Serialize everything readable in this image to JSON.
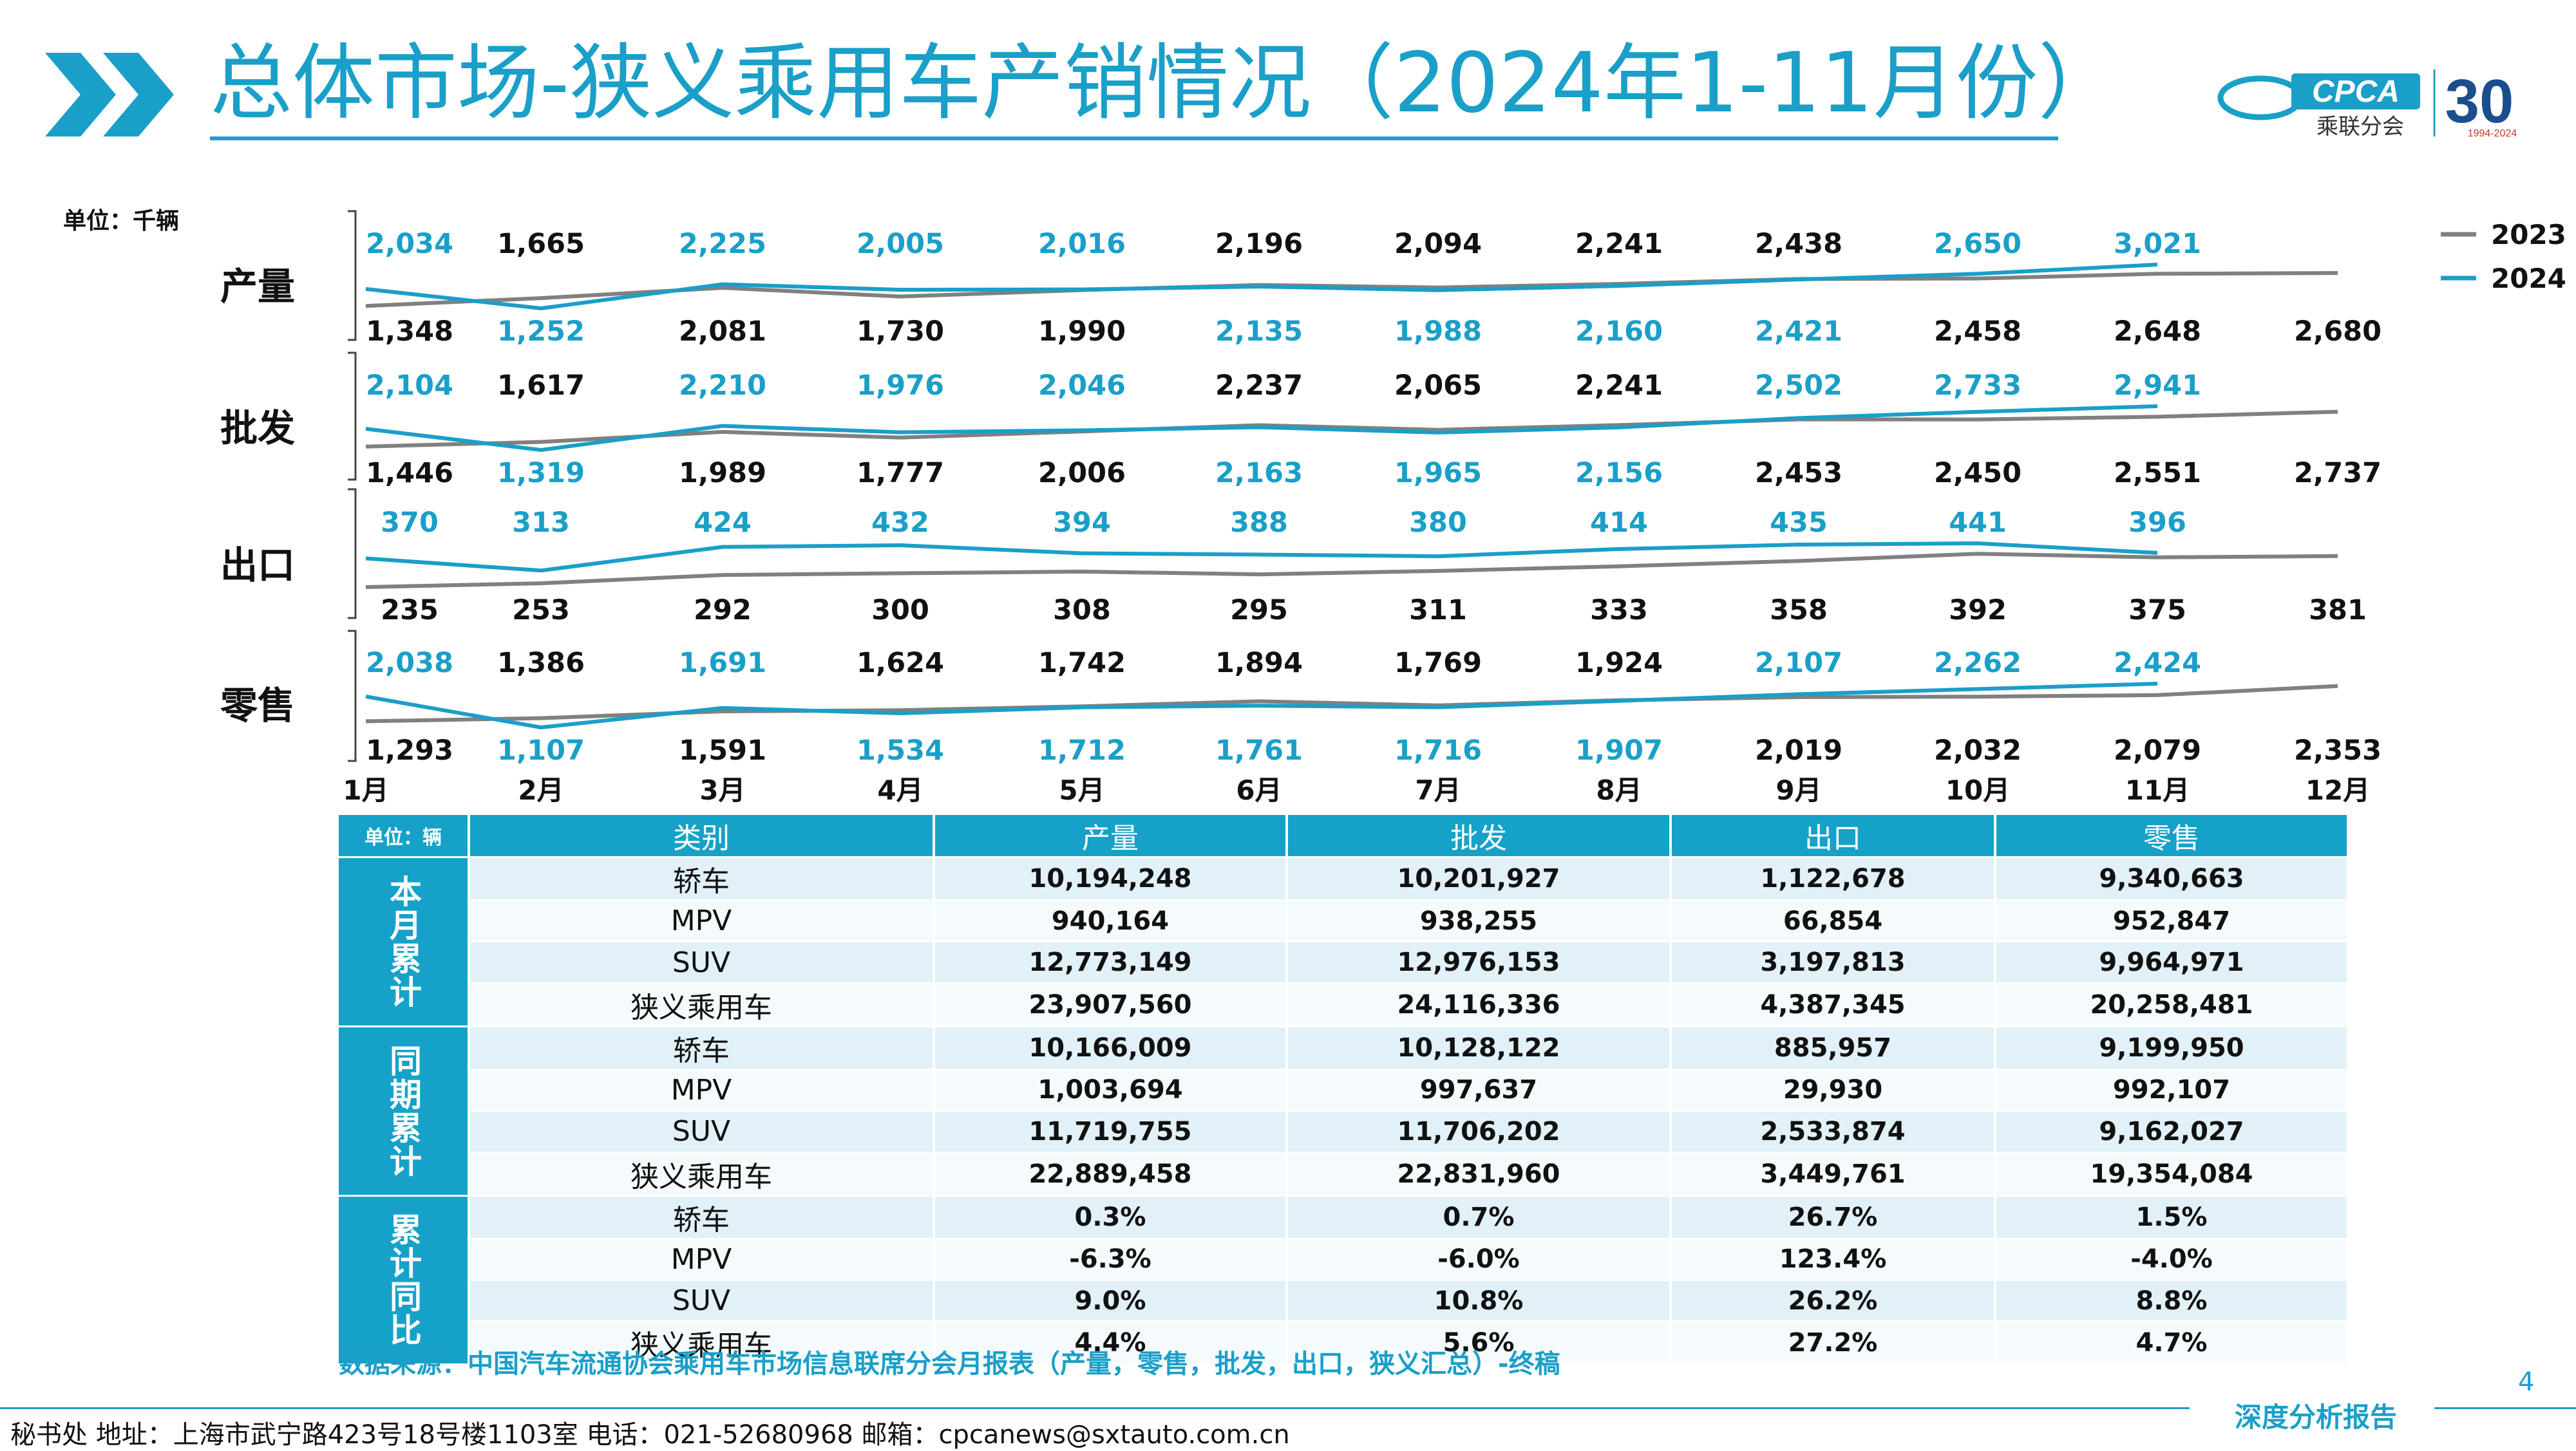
{
  "header": {
    "title": "总体市场-狭义乘用车产销情况（2024年1-11月份）",
    "logo_text": "CPCA",
    "logo_subtext": "乘联分会",
    "anniversary_text": "30",
    "anniversary_years": "1994-2024"
  },
  "colors": {
    "accent": "#1a9fc8",
    "series_2023": "#808080",
    "series_2024": "#1a9fc8"
  },
  "chart": {
    "unit": "单位：千辆",
    "legend": [
      "2023",
      "2024"
    ]
  },
  "chart_data": {
    "type": "line",
    "categories": [
      "1月",
      "2月",
      "3月",
      "4月",
      "5月",
      "6月",
      "7月",
      "8月",
      "9月",
      "10月",
      "11月",
      "12月"
    ],
    "panels": [
      {
        "label": "产量",
        "series": [
          {
            "name": "2023",
            "values": [
              1348,
              1665,
              2081,
              1730,
              1990,
              2196,
              2094,
              2241,
              2438,
              2458,
              2648,
              2680
            ],
            "labels": [
              "1,348",
              "1,665",
              "2,081",
              "1,730",
              "1,990",
              "2,196",
              "2,094",
              "2,241",
              "2,438",
              "2,458",
              "2,648",
              "2,680"
            ]
          },
          {
            "name": "2024",
            "values": [
              2034,
              1252,
              2225,
              2005,
              2016,
              2135,
              1988,
              2160,
              2421,
              2650,
              3021
            ],
            "labels": [
              "2,034",
              "1,252",
              "2,225",
              "2,005",
              "2,016",
              "2,135",
              "1,988",
              "2,160",
              "2,421",
              "2,650",
              "3,021"
            ]
          }
        ]
      },
      {
        "label": "批发",
        "series": [
          {
            "name": "2023",
            "values": [
              1446,
              1617,
              1989,
              1777,
              2006,
              2237,
              2065,
              2241,
              2453,
              2450,
              2551,
              2737
            ],
            "labels": [
              "1,446",
              "1,617",
              "1,989",
              "1,777",
              "2,006",
              "2,237",
              "2,065",
              "2,241",
              "2,453",
              "2,450",
              "2,551",
              "2,737"
            ]
          },
          {
            "name": "2024",
            "values": [
              2104,
              1319,
              2210,
              1976,
              2046,
              2163,
              1965,
              2156,
              2502,
              2733,
              2941
            ],
            "labels": [
              "2,104",
              "1,319",
              "2,210",
              "1,976",
              "2,046",
              "2,163",
              "1,965",
              "2,156",
              "2,502",
              "2,733",
              "2,941"
            ]
          }
        ]
      },
      {
        "label": "出口",
        "series": [
          {
            "name": "2023",
            "values": [
              235,
              253,
              292,
              300,
              308,
              295,
              311,
              333,
              358,
              392,
              375,
              381
            ],
            "labels": [
              "235",
              "253",
              "292",
              "300",
              "308",
              "295",
              "311",
              "333",
              "358",
              "392",
              "375",
              "381"
            ]
          },
          {
            "name": "2024",
            "values": [
              370,
              313,
              424,
              432,
              394,
              388,
              380,
              414,
              435,
              441,
              396
            ],
            "labels": [
              "370",
              "313",
              "424",
              "432",
              "394",
              "388",
              "380",
              "414",
              "435",
              "441",
              "396"
            ]
          }
        ]
      },
      {
        "label": "零售",
        "series": [
          {
            "name": "2023",
            "values": [
              1293,
              1386,
              1591,
              1624,
              1742,
              1894,
              1769,
              1924,
              2019,
              2032,
              2079,
              2353
            ],
            "labels": [
              "1,293",
              "1,386",
              "1,591",
              "1,624",
              "1,742",
              "1,894",
              "1,769",
              "1,924",
              "2,019",
              "2,032",
              "2,079",
              "2,353"
            ]
          },
          {
            "name": "2024",
            "values": [
              2038,
              1107,
              1691,
              1534,
              1712,
              1761,
              1716,
              1907,
              2107,
              2262,
              2424
            ],
            "labels": [
              "2,038",
              "1,107",
              "1,691",
              "1,534",
              "1,712",
              "1,761",
              "1,716",
              "1,907",
              "2,107",
              "2,262",
              "2,424"
            ]
          }
        ]
      }
    ]
  },
  "table": {
    "unit": "单位：辆",
    "headers": [
      "类别",
      "产量",
      "批发",
      "出口",
      "零售"
    ],
    "groups": [
      {
        "label": "本月累计",
        "rows": [
          {
            "cat": "轿车",
            "vals": [
              "10,194,248",
              "10,201,927",
              "1,122,678",
              "9,340,663"
            ]
          },
          {
            "cat": "MPV",
            "vals": [
              "940,164",
              "938,255",
              "66,854",
              "952,847"
            ]
          },
          {
            "cat": "SUV",
            "vals": [
              "12,773,149",
              "12,976,153",
              "3,197,813",
              "9,964,971"
            ]
          },
          {
            "cat": "狭义乘用车",
            "vals": [
              "23,907,560",
              "24,116,336",
              "4,387,345",
              "20,258,481"
            ]
          }
        ]
      },
      {
        "label": "同期累计",
        "rows": [
          {
            "cat": "轿车",
            "vals": [
              "10,166,009",
              "10,128,122",
              "885,957",
              "9,199,950"
            ]
          },
          {
            "cat": "MPV",
            "vals": [
              "1,003,694",
              "997,637",
              "29,930",
              "992,107"
            ]
          },
          {
            "cat": "SUV",
            "vals": [
              "11,719,755",
              "11,706,202",
              "2,533,874",
              "9,162,027"
            ]
          },
          {
            "cat": "狭义乘用车",
            "vals": [
              "22,889,458",
              "22,831,960",
              "3,449,761",
              "19,354,084"
            ]
          }
        ]
      },
      {
        "label": "累计同比",
        "rows": [
          {
            "cat": "轿车",
            "vals": [
              "0.3%",
              "0.7%",
              "26.7%",
              "1.5%"
            ]
          },
          {
            "cat": "MPV",
            "vals": [
              "-6.3%",
              "-6.0%",
              "123.4%",
              "-4.0%"
            ]
          },
          {
            "cat": "SUV",
            "vals": [
              "9.0%",
              "10.8%",
              "26.2%",
              "8.8%"
            ]
          },
          {
            "cat": "狭义乘用车",
            "vals": [
              "4.4%",
              "5.6%",
              "27.2%",
              "4.7%"
            ]
          }
        ]
      }
    ]
  },
  "source": "数据来源：中国汽车流通协会乘用车市场信息联席分会月报表（产量，零售，批发，出口，狭义汇总）-终稿",
  "page_number": "4",
  "footer": {
    "address": "秘书处  地址：上海市武宁路423号18号楼1103室  电话：021-52680968  邮箱：cpcanews@sxtauto.com.cn",
    "tagline": "深度分析报告"
  }
}
